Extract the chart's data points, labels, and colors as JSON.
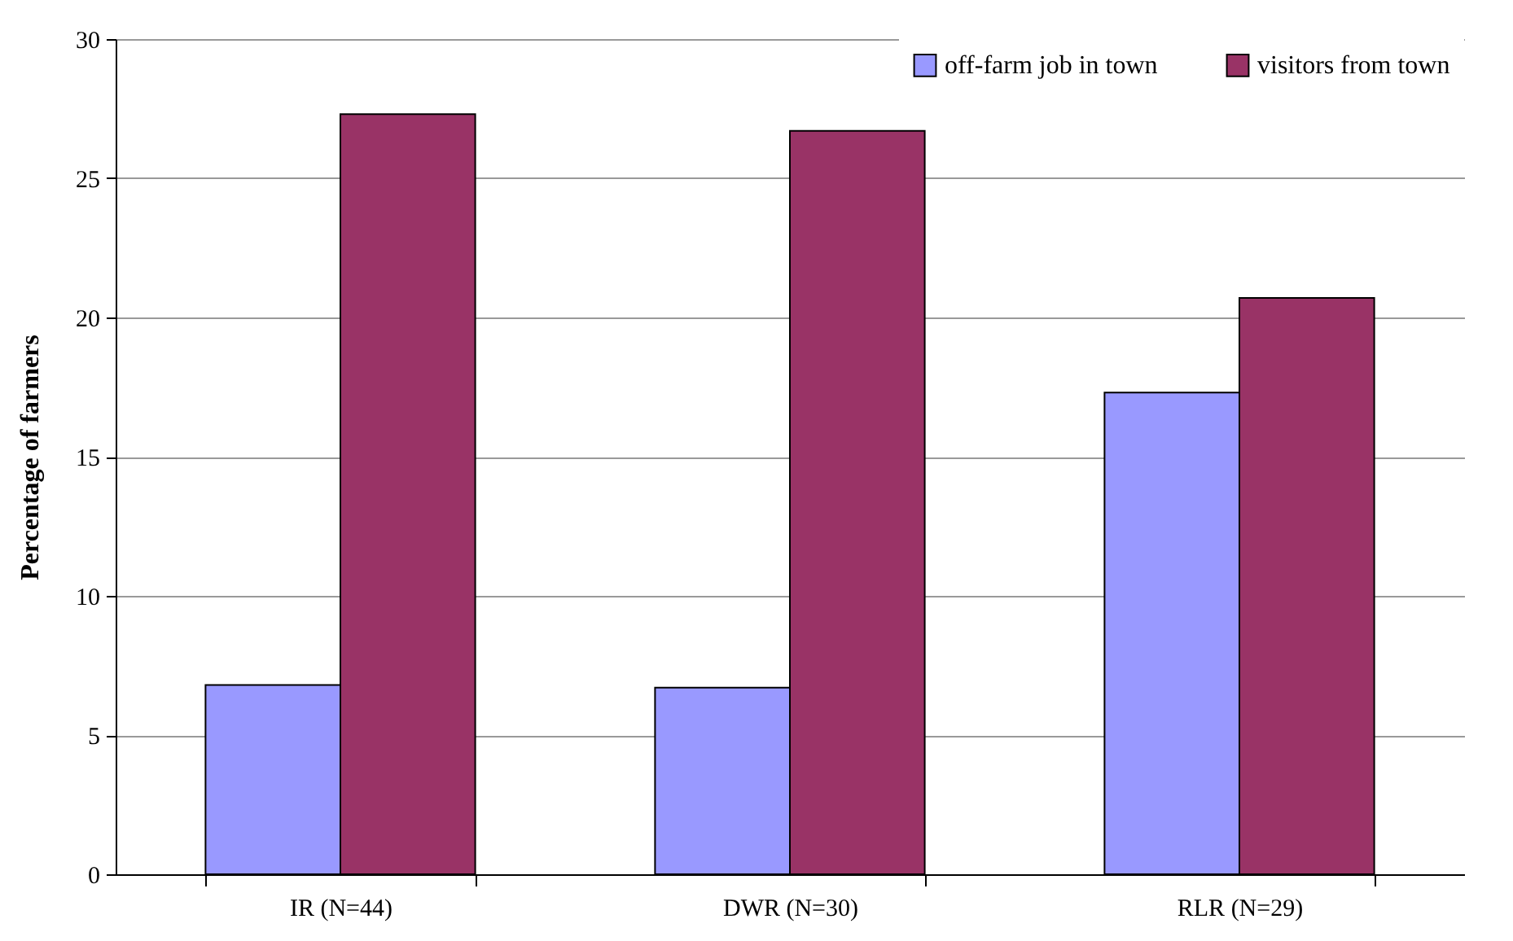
{
  "chart_data": {
    "type": "bar",
    "ylabel": "Percentage of farmers",
    "categories": [
      "IR (N=44)",
      "DWR (N=30)",
      "RLR (N=29)"
    ],
    "series": [
      {
        "name": "off-farm job in town",
        "color": "#9999ff",
        "values": [
          6.8,
          6.7,
          17.3
        ]
      },
      {
        "name": "visitors from town",
        "color": "#993366",
        "values": [
          27.3,
          26.7,
          20.7
        ]
      }
    ],
    "ylim": [
      0,
      30
    ],
    "yticks": [
      0,
      5,
      10,
      15,
      20,
      25,
      30
    ],
    "grid": "y",
    "legend": "top right"
  }
}
